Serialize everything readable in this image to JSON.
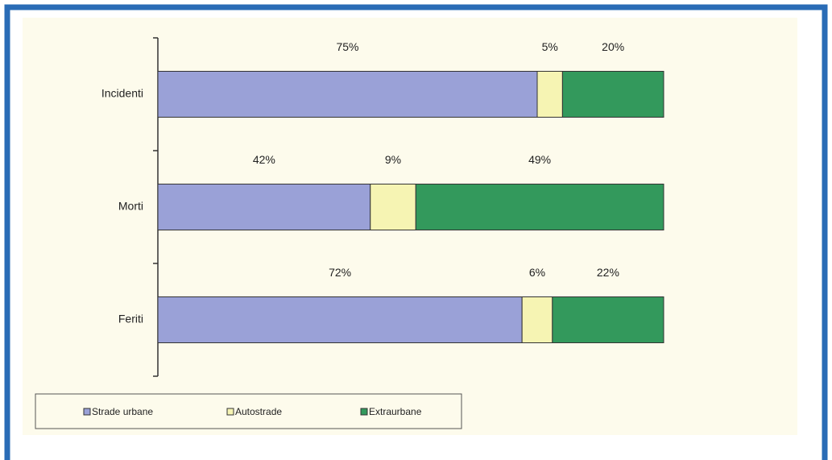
{
  "chart_data": {
    "type": "stacked-bar-horizontal",
    "categories": [
      "Incidenti",
      "Morti",
      "Feriti"
    ],
    "series": [
      {
        "name": "Strade urbane",
        "color": "#9aa1d7",
        "values": [
          75,
          42,
          72
        ],
        "value_labels": [
          "75%",
          "42%",
          "72%"
        ]
      },
      {
        "name": "Autostrade",
        "color": "#f6f4b3",
        "values": [
          5,
          9,
          6
        ],
        "value_labels": [
          "5%",
          "9%",
          "6%"
        ]
      },
      {
        "name": "Extraurbane",
        "color": "#33995c",
        "values": [
          20,
          49,
          22
        ],
        "value_labels": [
          "20%",
          "49%",
          "22%"
        ]
      }
    ],
    "xlim": [
      0,
      100
    ],
    "legend": "bottom"
  }
}
